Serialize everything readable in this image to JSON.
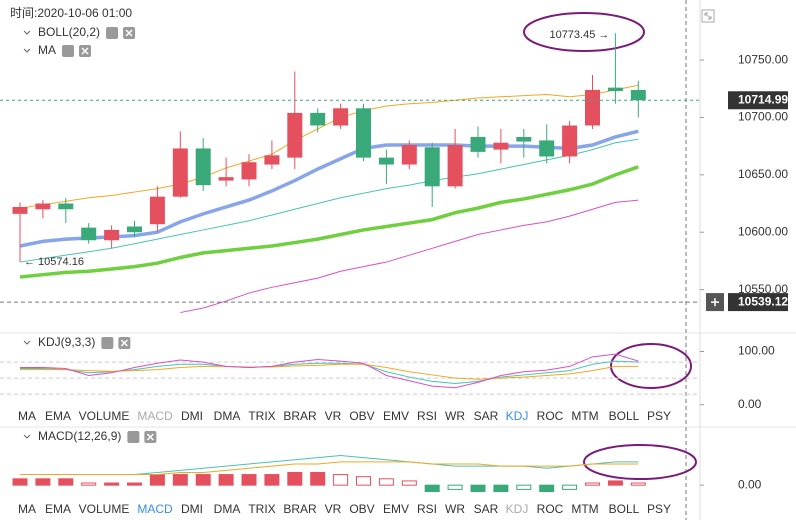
{
  "header": {
    "time": "时间:2020-10-06 01:00"
  },
  "chart_data": [
    {
      "type": "candlestick",
      "title": "BOLL(20,2)",
      "subtitle": "MA",
      "ylim": [
        10527,
        10798
      ],
      "yticks": [
        {
          "value": 10550,
          "label": "10550.00"
        },
        {
          "value": 10600,
          "label": "10600.00"
        },
        {
          "value": 10650,
          "label": "10650.00"
        },
        {
          "value": 10700,
          "label": "10700.00"
        },
        {
          "value": 10750,
          "label": "10750.00"
        }
      ],
      "open": [
        10616,
        10620,
        10625,
        10604,
        10593,
        10605,
        10607,
        10631,
        10673,
        10645,
        10646,
        10659,
        10665,
        10704,
        10693,
        10708,
        10665,
        10659,
        10674,
        10640,
        10683,
        10672,
        10683,
        10680,
        10666,
        10693,
        10726,
        10724
      ],
      "close": [
        10622,
        10625,
        10620,
        10593,
        10602,
        10600,
        10631,
        10673,
        10641,
        10648,
        10661,
        10667,
        10704,
        10693,
        10708,
        10665,
        10659,
        10676,
        10640,
        10676,
        10670,
        10678,
        10679,
        10666,
        10693,
        10724,
        10723,
        10714.99
      ],
      "high": [
        10626,
        10628,
        10630,
        10608,
        10606,
        10610,
        10640,
        10688,
        10682,
        10665,
        10668,
        10680,
        10740,
        10708,
        10712,
        10712,
        10672,
        10680,
        10678,
        10690,
        10692,
        10690,
        10690,
        10694,
        10697,
        10737,
        10773.45,
        10732
      ],
      "low": [
        10574.16,
        10612,
        10608,
        10590,
        10586,
        10596,
        10600,
        10630,
        10636,
        10640,
        10640,
        10655,
        10655,
        10687,
        10690,
        10662,
        10642,
        10655,
        10622,
        10638,
        10665,
        10660,
        10665,
        10660,
        10660,
        10690,
        10712,
        10700
      ],
      "up_color": "#e5505e",
      "down_color": "#3aa97a",
      "series": [
        {
          "color": "#f5a623",
          "values": [
            10621,
            10624,
            10627,
            10630,
            10632,
            10635,
            10638,
            10642,
            10648,
            10656,
            10662,
            10668,
            10680,
            10690,
            10700,
            10706,
            10710,
            10712,
            10713,
            10715,
            10717,
            10718,
            10719,
            10720,
            10718,
            10720,
            10724,
            10728
          ]
        },
        {
          "color": "#47c4b4",
          "values": [
            10574,
            10577,
            10580,
            10583,
            10586,
            10590,
            10594,
            10598,
            10602,
            10606,
            10610,
            10615,
            10620,
            10625,
            10630,
            10634,
            10638,
            10641,
            10645,
            10648,
            10651,
            10655,
            10659,
            10663,
            10667,
            10672,
            10678,
            10681
          ]
        },
        {
          "color": "#d84fc8",
          "values": [
            null,
            null,
            null,
            null,
            null,
            null,
            null,
            10530,
            10534,
            10540,
            10547,
            10552,
            10556,
            10560,
            10566,
            10570,
            10574,
            10580,
            10586,
            10592,
            10598,
            10602,
            10606,
            10609,
            10614,
            10620,
            10626,
            10628
          ]
        },
        {
          "color": "#86a5ea",
          "bold": true,
          "values": [
            10588,
            10592,
            10594,
            10595,
            10596,
            10597,
            10600,
            10609,
            10616,
            10622,
            10628,
            10636,
            10645,
            10655,
            10664,
            10673,
            10676,
            10676,
            10676,
            10676,
            10675,
            10675,
            10675,
            10674,
            10673,
            10676,
            10683,
            10688
          ]
        },
        {
          "color": "#6fcf3f",
          "bold": true,
          "values": [
            10561,
            10563,
            10565,
            10566,
            10568,
            10570,
            10573,
            10578,
            10582,
            10584,
            10586,
            10588,
            10591,
            10594,
            10598,
            10602,
            10605,
            10608,
            10611,
            10617,
            10621,
            10626,
            10629,
            10633,
            10637,
            10642,
            10650,
            10657
          ]
        }
      ],
      "last_price": {
        "value": 10714.99,
        "label": "10714.99"
      },
      "cursor_price": {
        "value": 10539.12,
        "label": "10539.12"
      },
      "max_label": "10773.45 →",
      "min_label": "← 10574.16"
    },
    {
      "type": "line",
      "title": "KDJ(9,3,3)",
      "ylim": [
        -8,
        116
      ],
      "yticks": [
        {
          "value": 0,
          "label": "0.00"
        },
        {
          "value": 100,
          "label": "100.00"
        }
      ],
      "series": [
        {
          "color": "#47c4b4",
          "values": [
            68,
            68,
            66,
            60,
            62,
            66,
            72,
            76,
            76,
            72,
            70,
            72,
            76,
            78,
            78,
            76,
            62,
            52,
            44,
            40,
            44,
            52,
            56,
            60,
            64,
            76,
            82,
            80
          ]
        },
        {
          "color": "#f5a623",
          "values": [
            66,
            66,
            66,
            64,
            63,
            64,
            66,
            70,
            72,
            72,
            71,
            71,
            73,
            74,
            76,
            76,
            70,
            62,
            56,
            50,
            48,
            50,
            52,
            55,
            58,
            64,
            72,
            72
          ]
        },
        {
          "color": "#d84fc8",
          "values": [
            70,
            70,
            68,
            55,
            60,
            70,
            78,
            84,
            80,
            72,
            70,
            72,
            80,
            85,
            82,
            78,
            55,
            45,
            35,
            32,
            42,
            55,
            62,
            65,
            72,
            90,
            95,
            82
          ]
        }
      ]
    },
    {
      "type": "macd",
      "title": "MACD(12,26,9)",
      "ylim": [
        -7,
        18
      ],
      "yticks": [
        {
          "value": 0,
          "label": "0.00"
        }
      ],
      "values": [
        3,
        3,
        3,
        1,
        1,
        1,
        5,
        5,
        5,
        5,
        5,
        5,
        6,
        6,
        5,
        4,
        3,
        2,
        -3,
        -2,
        -3,
        -3,
        -2,
        -3,
        -2,
        1,
        2,
        1
      ],
      "up_color": "#e5505e",
      "down_color": "#3aa97a",
      "series": [
        {
          "color": "#47c4b4",
          "values": [
            5,
            5,
            5,
            5,
            5,
            5,
            6,
            7,
            8,
            9,
            10,
            11,
            12,
            13,
            14,
            13,
            12,
            11,
            10,
            9,
            9,
            9,
            9,
            8,
            9,
            10,
            11,
            11
          ]
        },
        {
          "color": "#f5a623",
          "values": [
            5,
            5,
            5,
            5,
            5,
            5,
            5,
            6,
            6,
            7,
            8,
            9,
            10,
            10,
            11,
            11,
            11,
            11,
            10,
            10,
            10,
            9,
            9,
            9,
            9,
            10,
            10,
            10
          ]
        }
      ]
    }
  ],
  "tabs": [
    "MA",
    "EMA",
    "VOLUME",
    "MACD",
    "DMI",
    "DMA",
    "TRIX",
    "BRAR",
    "VR",
    "OBV",
    "EMV",
    "RSI",
    "WR",
    "SAR",
    "KDJ",
    "ROC",
    "MTM",
    "BOLL",
    "PSY"
  ]
}
